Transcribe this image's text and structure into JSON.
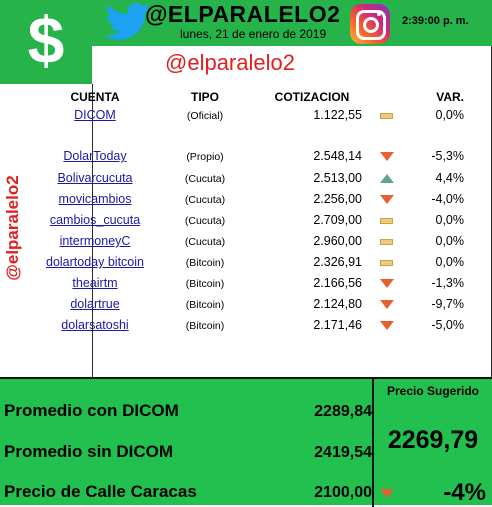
{
  "header": {
    "dollar_symbol": "$",
    "brand": "@ELPARALELO2",
    "date": "lunes, 21 de enero de 2019",
    "time": "2:39:00 p. m.",
    "handle": "@elparalelo2",
    "vertical_handle": "@elparalelo2",
    "colors": {
      "green": "#25b34a",
      "red": "#e02020",
      "twitter": "#1da1f2"
    }
  },
  "table": {
    "headers": {
      "cuenta": "CUENTA",
      "tipo": "TIPO",
      "cotizacion": "COTIZACION",
      "var": "VAR."
    },
    "rows": [
      {
        "cuenta": "DICOM",
        "tipo": "(Oficial)",
        "cotizacion": "1.122,55",
        "trend": "flat",
        "var": "0,0%"
      },
      {
        "cuenta": "DolarToday",
        "tipo": "(Propio)",
        "cotizacion": "2.548,14",
        "trend": "down",
        "var": "-5,3%"
      },
      {
        "cuenta": "Bolivarcucuta",
        "tipo": "(Cucuta)",
        "cotizacion": "2.513,00",
        "trend": "up",
        "var": "4,4%"
      },
      {
        "cuenta": "movicambios",
        "tipo": "(Cucuta)",
        "cotizacion": "2.256,00",
        "trend": "down",
        "var": "-4,0%"
      },
      {
        "cuenta": "cambios_cucuta",
        "tipo": "(Cucuta)",
        "cotizacion": "2.709,00",
        "trend": "flat",
        "var": "0,0%"
      },
      {
        "cuenta": "intermoneyC",
        "tipo": "(Cucuta)",
        "cotizacion": "2.960,00",
        "trend": "flat",
        "var": "0,0%"
      },
      {
        "cuenta": "dolartoday bitcoin",
        "tipo": "(Bitcoin)",
        "cotizacion": "2.326,91",
        "trend": "flat",
        "var": "0,0%"
      },
      {
        "cuenta": "theairtm",
        "tipo": "(Bitcoin)",
        "cotizacion": "2.166,56",
        "trend": "down",
        "var": "-1,3%"
      },
      {
        "cuenta": "dolartrue",
        "tipo": "(Bitcoin)",
        "cotizacion": "2.124,80",
        "trend": "down",
        "var": "-9,7%"
      },
      {
        "cuenta": "dolarsatoshi",
        "tipo": "(Bitcoin)",
        "cotizacion": "2.171,46",
        "trend": "down",
        "var": "-5,0%"
      }
    ]
  },
  "summary": {
    "promedio_con_label": "Promedio con DICOM",
    "promedio_con_value": "2289,84",
    "promedio_sin_label": "Promedio sin DICOM",
    "promedio_sin_value": "2419,54",
    "calle_label": "Precio de Calle Caracas",
    "calle_value": "2100,00",
    "calle_trend": "down",
    "calle_pct": "-4%",
    "sugerido_label": "Precio Sugerido",
    "sugerido_value": "2269,79"
  }
}
